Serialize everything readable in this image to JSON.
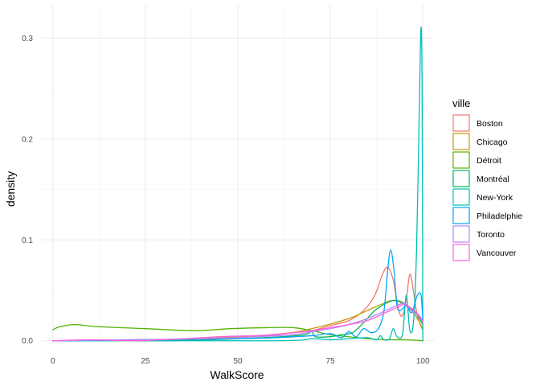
{
  "chart_data": {
    "type": "line",
    "title": "",
    "xlabel": "WalkScore",
    "ylabel": "density",
    "xlim": [
      -3,
      103
    ],
    "ylim": [
      -0.005,
      0.333
    ],
    "x_ticks": [
      0,
      25,
      50,
      75,
      100
    ],
    "y_ticks": [
      0.0,
      0.1,
      0.2,
      0.3
    ],
    "x_tick_labels": [
      "0",
      "25",
      "50",
      "75",
      "100"
    ],
    "y_tick_labels": [
      "0.0",
      "0.1",
      "0.2",
      "0.3"
    ],
    "grid": true,
    "legend": {
      "title": "ville",
      "position": "right"
    },
    "series": [
      {
        "name": "Boston",
        "color": "#F8766D",
        "points": [
          [
            0,
            0.0
          ],
          [
            20,
            0.0
          ],
          [
            40,
            0.002
          ],
          [
            55,
            0.005
          ],
          [
            65,
            0.008
          ],
          [
            70,
            0.01
          ],
          [
            75,
            0.015
          ],
          [
            80,
            0.02
          ],
          [
            84,
            0.03
          ],
          [
            87,
            0.045
          ],
          [
            89,
            0.065
          ],
          [
            90.5,
            0.073
          ],
          [
            92,
            0.06
          ],
          [
            93.5,
            0.03
          ],
          [
            94.5,
            0.025
          ],
          [
            95.5,
            0.04
          ],
          [
            96.5,
            0.066
          ],
          [
            97.5,
            0.048
          ],
          [
            98.5,
            0.025
          ],
          [
            100,
            0.01
          ]
        ]
      },
      {
        "name": "Chicago",
        "color": "#C49A00",
        "points": [
          [
            0,
            0.0
          ],
          [
            20,
            0.001
          ],
          [
            40,
            0.002
          ],
          [
            60,
            0.006
          ],
          [
            70,
            0.012
          ],
          [
            80,
            0.022
          ],
          [
            85,
            0.03
          ],
          [
            90,
            0.038
          ],
          [
            92,
            0.04
          ],
          [
            94,
            0.038
          ],
          [
            96,
            0.033
          ],
          [
            98,
            0.025
          ],
          [
            100,
            0.012
          ]
        ]
      },
      {
        "name": "Détroit",
        "color": "#53B400",
        "points": [
          [
            0,
            0.011
          ],
          [
            2,
            0.014
          ],
          [
            6,
            0.016
          ],
          [
            12,
            0.014
          ],
          [
            25,
            0.012
          ],
          [
            38,
            0.01
          ],
          [
            48,
            0.012
          ],
          [
            58,
            0.013
          ],
          [
            65,
            0.013
          ],
          [
            70,
            0.01
          ],
          [
            75,
            0.006
          ],
          [
            80,
            0.004
          ],
          [
            85,
            0.002
          ],
          [
            90,
            0.001
          ],
          [
            95,
            0.001
          ],
          [
            100,
            0.0
          ]
        ]
      },
      {
        "name": "Montréal",
        "color": "#00B65C",
        "points": [
          [
            0,
            0.0
          ],
          [
            30,
            0.0
          ],
          [
            50,
            0.002
          ],
          [
            62,
            0.004
          ],
          [
            68,
            0.006
          ],
          [
            70,
            0.009
          ],
          [
            71,
            0.004
          ],
          [
            75,
            0.004
          ],
          [
            78,
            0.006
          ],
          [
            81,
            0.008
          ],
          [
            84,
            0.018
          ],
          [
            87,
            0.03
          ],
          [
            90,
            0.037
          ],
          [
            92,
            0.04
          ],
          [
            94,
            0.039
          ],
          [
            96,
            0.034
          ],
          [
            98,
            0.028
          ],
          [
            100,
            0.016
          ]
        ]
      },
      {
        "name": "New-York",
        "color": "#00C0B8",
        "points": [
          [
            0,
            0.0
          ],
          [
            60,
            0.0
          ],
          [
            70,
            0.002
          ],
          [
            75,
            0.001
          ],
          [
            80,
            0.002
          ],
          [
            85,
            0.003
          ],
          [
            87.5,
            0.001
          ],
          [
            88.5,
            0.005
          ],
          [
            89.5,
            0.001
          ],
          [
            91,
            0.002
          ],
          [
            92,
            0.012
          ],
          [
            93,
            0.004
          ],
          [
            94.5,
            0.006
          ],
          [
            95.5,
            0.045
          ],
          [
            96.5,
            0.01
          ],
          [
            97.5,
            0.02
          ],
          [
            98.3,
            0.09
          ],
          [
            99,
            0.22
          ],
          [
            99.5,
            0.31
          ],
          [
            99.8,
            0.25
          ],
          [
            100,
            0.0
          ]
        ]
      },
      {
        "name": "Philadelphie",
        "color": "#00A5FF",
        "points": [
          [
            0,
            0.0
          ],
          [
            30,
            0.001
          ],
          [
            50,
            0.002
          ],
          [
            60,
            0.003
          ],
          [
            70,
            0.005
          ],
          [
            75,
            0.007
          ],
          [
            78,
            0.003
          ],
          [
            80,
            0.009
          ],
          [
            82,
            0.004
          ],
          [
            84,
            0.012
          ],
          [
            86,
            0.008
          ],
          [
            88,
            0.012
          ],
          [
            89.5,
            0.03
          ],
          [
            90.5,
            0.07
          ],
          [
            91.3,
            0.09
          ],
          [
            92.2,
            0.07
          ],
          [
            93,
            0.035
          ],
          [
            94,
            0.03
          ],
          [
            95.5,
            0.035
          ],
          [
            97,
            0.028
          ],
          [
            98.5,
            0.045
          ],
          [
            99.5,
            0.045
          ],
          [
            100,
            0.02
          ]
        ]
      },
      {
        "name": "Toronto",
        "color": "#B983FF",
        "points": [
          [
            0,
            0.0
          ],
          [
            20,
            0.001
          ],
          [
            40,
            0.002
          ],
          [
            55,
            0.004
          ],
          [
            65,
            0.006
          ],
          [
            70,
            0.009
          ],
          [
            75,
            0.012
          ],
          [
            80,
            0.016
          ],
          [
            85,
            0.022
          ],
          [
            90,
            0.03
          ],
          [
            93,
            0.035
          ],
          [
            95,
            0.037
          ],
          [
            97,
            0.03
          ],
          [
            99,
            0.024
          ],
          [
            100,
            0.018
          ]
        ]
      },
      {
        "name": "Vancouver",
        "color": "#FB61D7",
        "points": [
          [
            0,
            0.0
          ],
          [
            10,
            0.001
          ],
          [
            20,
            0.0
          ],
          [
            30,
            0.001
          ],
          [
            45,
            0.004
          ],
          [
            55,
            0.005
          ],
          [
            60,
            0.006
          ],
          [
            65,
            0.008
          ],
          [
            70,
            0.01
          ],
          [
            75,
            0.013
          ],
          [
            80,
            0.016
          ],
          [
            85,
            0.02
          ],
          [
            90,
            0.028
          ],
          [
            93,
            0.033
          ],
          [
            95,
            0.036
          ],
          [
            97,
            0.032
          ],
          [
            99,
            0.025
          ],
          [
            100,
            0.02
          ]
        ]
      }
    ]
  }
}
